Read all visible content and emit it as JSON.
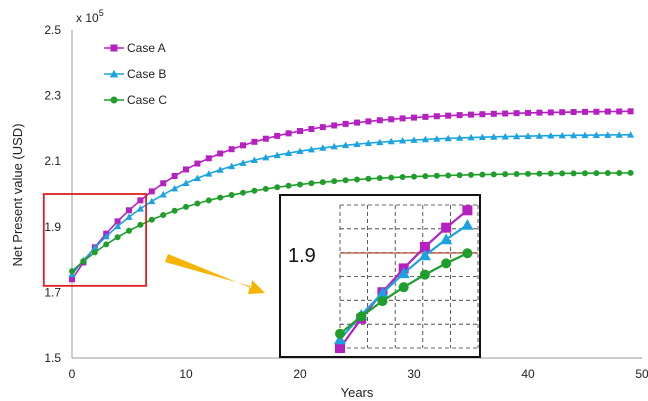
{
  "chart_data": {
    "type": "line",
    "xlabel": "Years",
    "ylabel": "Net Present value (USD)",
    "y_multiplier_label": "x 10",
    "y_multiplier_exponent": "5",
    "xlim": [
      0,
      50
    ],
    "ylim": [
      1.5,
      2.5
    ],
    "x_ticks": [
      0,
      10,
      20,
      30,
      40,
      50
    ],
    "x_tick_labels": [
      "0",
      "10",
      "20",
      "30",
      "40",
      "50"
    ],
    "y_ticks": [
      1.5,
      1.7,
      1.9,
      2.1,
      2.3,
      2.5
    ],
    "y_tick_labels": [
      "1.5",
      "1.7",
      "1.9",
      "2.1",
      "2.3",
      "2.5"
    ],
    "grid": false,
    "legend_position": "top-left",
    "series": [
      {
        "name": "Case A",
        "color": "#b61fc0",
        "marker": "square",
        "start": 1.74,
        "plateau": 2.255,
        "rate": 0.105
      },
      {
        "name": "Case B",
        "color": "#1aa3e0",
        "marker": "triangle",
        "start": 1.755,
        "plateau": 2.183,
        "rate": 0.105
      },
      {
        "name": "Case C",
        "color": "#1f9e2b",
        "marker": "circle",
        "start": 1.765,
        "plateau": 2.066,
        "rate": 0.105
      }
    ],
    "x_points_step": 1,
    "inset": {
      "label": "1.9",
      "highlight_region_x": [
        -3,
        6.5
      ],
      "highlight_region_y": [
        1.72,
        2.0
      ]
    }
  }
}
